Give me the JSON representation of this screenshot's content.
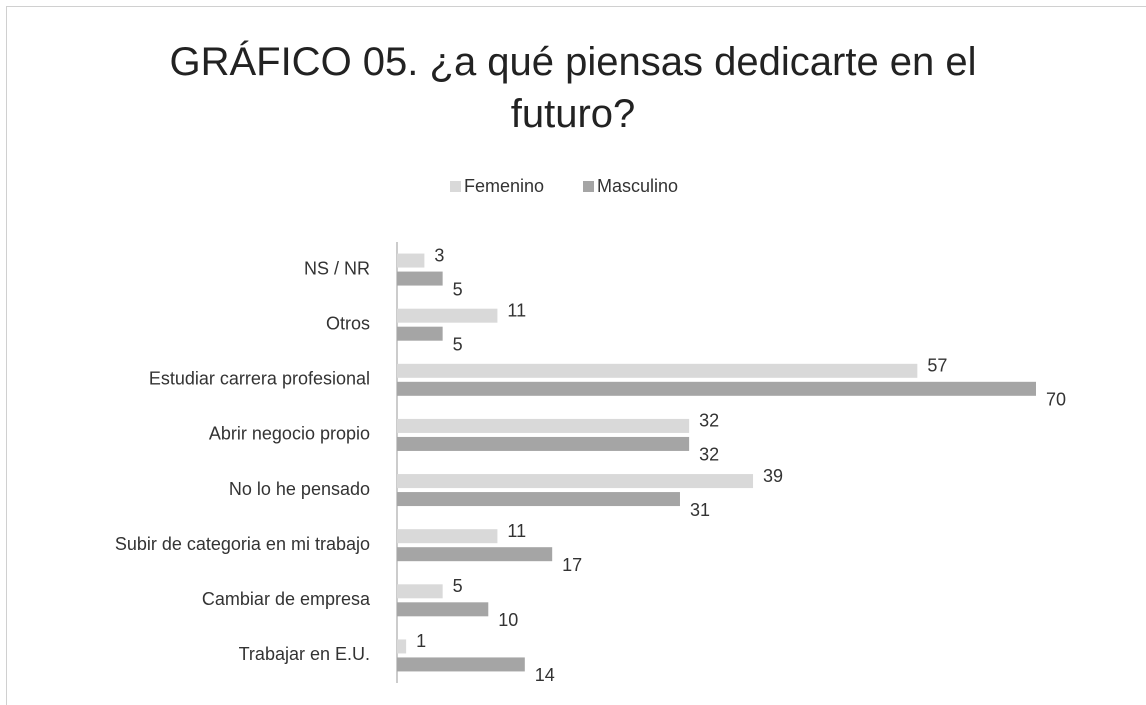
{
  "chart_data": {
    "type": "bar",
    "orientation": "horizontal",
    "title": "GRÁFICO 05. ¿a qué piensas dedicarte en el futuro?",
    "categories": [
      "NS / NR",
      "Otros",
      "Estudiar carrera profesional",
      "Abrir negocio propio",
      "No lo he pensado",
      "Subir de categoria en mi trabajo",
      "Cambiar de empresa",
      "Trabajar en E.U."
    ],
    "series": [
      {
        "name": "Femenino",
        "color": "#d9d9d9",
        "values": [
          3,
          11,
          57,
          32,
          39,
          11,
          5,
          1
        ]
      },
      {
        "name": "Masculino",
        "color": "#a5a5a5",
        "values": [
          5,
          5,
          70,
          32,
          31,
          17,
          10,
          14
        ]
      }
    ],
    "legend": "top"
  }
}
